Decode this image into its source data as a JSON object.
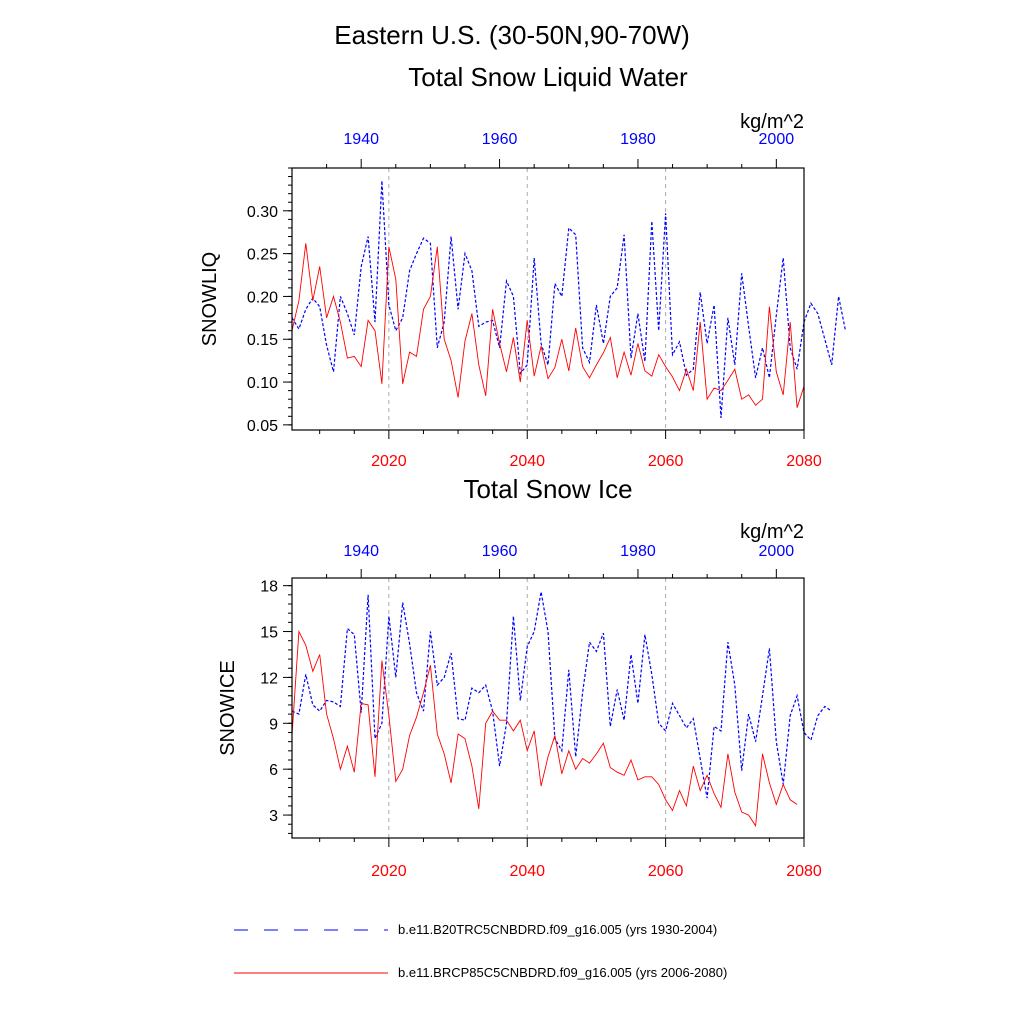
{
  "title": "Eastern U.S. (30-50N,90-70W)",
  "colors": {
    "historical": "#0000ff",
    "future": "#ff0000",
    "gridline": "#aaaaaa",
    "axis": "#000000"
  },
  "legend": {
    "historical": "b.e11.B20TRC5CNBDRD.f09_g16.005 (yrs 1930-2004)",
    "future": "b.e11.BRCP85C5CNBDRD.f09_g16.005 (yrs 2006-2080)"
  },
  "chart_data": [
    {
      "type": "line",
      "title": "Total Snow Liquid Water",
      "ylabel": "SNOWLIQ",
      "units": "kg/m^2",
      "ylim": [
        0.044,
        0.35
      ],
      "yticks": [
        0.05,
        0.1,
        0.15,
        0.2,
        0.25,
        0.3
      ],
      "ytick_labels": [
        "0.05",
        "0.10",
        "0.15",
        "0.20",
        "0.25",
        "0.30"
      ],
      "xlim_bottom": [
        2006,
        2080
      ],
      "xticks_bottom": [
        2020,
        2040,
        2060,
        2080
      ],
      "xlim_top": [
        1930,
        2004
      ],
      "xticks_top": [
        1940,
        1960,
        1980,
        2000
      ],
      "gridlines_x": [
        2020,
        2040,
        2060
      ],
      "series": [
        {
          "name": "b.e11.B20TRC5CNBDRD.f09_g16.005 (yrs 1930-2004)",
          "style": "dashed",
          "color": "#0000ff",
          "x_axis": "top",
          "x_start": 1930,
          "values": [
            0.175,
            0.162,
            0.185,
            0.198,
            0.188,
            0.143,
            0.112,
            0.2,
            0.18,
            0.155,
            0.235,
            0.27,
            0.17,
            0.335,
            0.19,
            0.16,
            0.175,
            0.23,
            0.25,
            0.268,
            0.262,
            0.14,
            0.17,
            0.27,
            0.185,
            0.25,
            0.23,
            0.165,
            0.17,
            0.172,
            0.14,
            0.218,
            0.2,
            0.11,
            0.12,
            0.245,
            0.145,
            0.12,
            0.215,
            0.2,
            0.28,
            0.272,
            0.14,
            0.123,
            0.19,
            0.145,
            0.2,
            0.21,
            0.272,
            0.128,
            0.18,
            0.124,
            0.288,
            0.16,
            0.297,
            0.132,
            0.147,
            0.108,
            0.115,
            0.205,
            0.145,
            0.19,
            0.058,
            0.175,
            0.12,
            0.227,
            0.165,
            0.105,
            0.14,
            0.105,
            0.178,
            0.245,
            0.14,
            0.115,
            0.17,
            0.192,
            0.18,
            0.15,
            0.12,
            0.2,
            0.16
          ]
        },
        {
          "name": "b.e11.BRCP85C5CNBDRD.f09_g16.005 (yrs 2006-2080)",
          "style": "solid",
          "color": "#ff0000",
          "x_axis": "bottom",
          "x_start": 2006,
          "values": [
            0.16,
            0.195,
            0.262,
            0.195,
            0.235,
            0.175,
            0.2,
            0.17,
            0.128,
            0.13,
            0.118,
            0.172,
            0.16,
            0.098,
            0.258,
            0.22,
            0.098,
            0.135,
            0.13,
            0.185,
            0.2,
            0.258,
            0.15,
            0.125,
            0.082,
            0.148,
            0.18,
            0.12,
            0.084,
            0.185,
            0.145,
            0.112,
            0.152,
            0.1,
            0.172,
            0.107,
            0.142,
            0.104,
            0.117,
            0.15,
            0.113,
            0.163,
            0.118,
            0.105,
            0.12,
            0.134,
            0.152,
            0.105,
            0.135,
            0.108,
            0.145,
            0.113,
            0.107,
            0.132,
            0.118,
            0.106,
            0.09,
            0.115,
            0.09,
            0.17,
            0.08,
            0.093,
            0.09,
            0.102,
            0.115,
            0.08,
            0.085,
            0.073,
            0.08,
            0.188,
            0.112,
            0.085,
            0.17,
            0.07,
            0.095
          ]
        }
      ]
    },
    {
      "type": "line",
      "title": "Total Snow Ice",
      "ylabel": "SNOWICE",
      "units": "kg/m^2",
      "ylim": [
        1.5,
        18.5
      ],
      "yticks": [
        3,
        6,
        9,
        12,
        15,
        18
      ],
      "ytick_labels": [
        "3",
        "6",
        "9",
        "12",
        "15",
        "18"
      ],
      "xlim_bottom": [
        2006,
        2080
      ],
      "xticks_bottom": [
        2020,
        2040,
        2060,
        2080
      ],
      "xlim_top": [
        1930,
        2004
      ],
      "xticks_top": [
        1940,
        1960,
        1980,
        2000
      ],
      "gridlines_x": [
        2020,
        2040,
        2060
      ],
      "series": [
        {
          "name": "b.e11.B20TRC5CNBDRD.f09_g16.005 (yrs 1930-2004)",
          "style": "dashed",
          "color": "#0000ff",
          "x_axis": "top",
          "x_start": 1930,
          "values": [
            9.8,
            9.6,
            12.2,
            10.2,
            9.8,
            10.5,
            10.4,
            10.1,
            15.2,
            14.8,
            9.7,
            17.4,
            8.0,
            9.0,
            16.0,
            12.0,
            16.9,
            14.2,
            11.0,
            9.8,
            15.0,
            11.5,
            12.0,
            13.6,
            9.3,
            9.2,
            11.3,
            11.0,
            11.5,
            9.8,
            6.2,
            9.0,
            16.0,
            10.5,
            14.0,
            15.0,
            17.6,
            15.0,
            8.0,
            7.2,
            12.5,
            6.8,
            11.0,
            14.3,
            13.7,
            14.9,
            8.8,
            11.2,
            9.2,
            13.5,
            10.3,
            14.8,
            12.2,
            9.0,
            8.5,
            10.3,
            9.5,
            8.7,
            9.3,
            6.7,
            4.1,
            8.8,
            8.5,
            14.3,
            11.5,
            5.9,
            9.6,
            7.8,
            10.8,
            13.9,
            7.8,
            5.0,
            9.5,
            10.8,
            8.4,
            7.9,
            9.5,
            10.1,
            9.8
          ]
        },
        {
          "name": "b.e11.BRCP85C5CNBDRD.f09_g16.005 (yrs 2006-2080)",
          "style": "solid",
          "color": "#ff0000",
          "x_axis": "bottom",
          "x_start": 2006,
          "values": [
            8.2,
            15.0,
            14.1,
            12.4,
            13.5,
            9.6,
            8.0,
            6.0,
            7.5,
            5.8,
            10.3,
            10.2,
            5.5,
            13.1,
            9.5,
            5.2,
            6.0,
            8.2,
            9.4,
            11.0,
            12.8,
            8.3,
            7.0,
            5.1,
            8.3,
            8.0,
            6.2,
            3.4,
            9.0,
            9.8,
            9.2,
            9.2,
            8.5,
            9.2,
            7.2,
            8.5,
            4.9,
            6.8,
            8.2,
            5.7,
            7.2,
            6.0,
            6.7,
            6.4,
            7.0,
            7.7,
            6.1,
            5.8,
            5.6,
            6.6,
            5.3,
            5.5,
            5.5,
            5.0,
            4.0,
            3.3,
            4.6,
            3.6,
            6.2,
            4.6,
            5.6,
            4.4,
            3.5,
            7.0,
            4.5,
            3.2,
            3.0,
            2.3,
            7.0,
            5.1,
            3.7,
            5.0,
            4.0,
            3.7
          ]
        }
      ]
    }
  ]
}
